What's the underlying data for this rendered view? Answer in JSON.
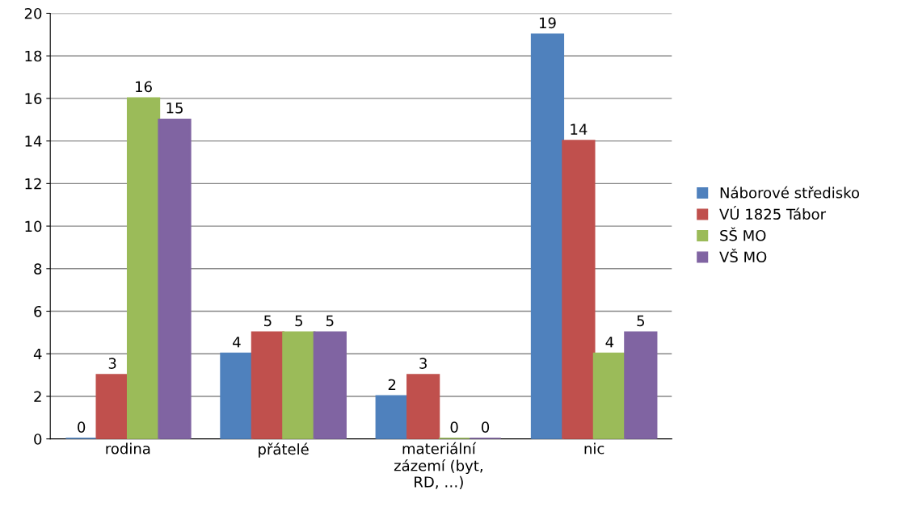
{
  "chart_data": {
    "type": "bar",
    "categories": [
      "rodina",
      "přátelé",
      "materiální\nzázemí (byt,\nRD, …)",
      "nic"
    ],
    "series": [
      {
        "name": "Náborové středisko",
        "color": "#4f81bd",
        "values": [
          0,
          4,
          2,
          19
        ]
      },
      {
        "name": "VÚ 1825 Tábor",
        "color": "#c0504d",
        "values": [
          3,
          5,
          3,
          14
        ]
      },
      {
        "name": "SŠ MO",
        "color": "#9bbb59",
        "values": [
          16,
          5,
          0,
          4
        ]
      },
      {
        "name": "VŠ MO",
        "color": "#8064a2",
        "values": [
          15,
          5,
          0,
          5
        ]
      }
    ],
    "ylim": [
      0,
      20
    ],
    "yticks": [
      0,
      2,
      4,
      6,
      8,
      10,
      12,
      14,
      16,
      18,
      20
    ],
    "grid": "y",
    "legend": "right",
    "data_labels": true
  }
}
